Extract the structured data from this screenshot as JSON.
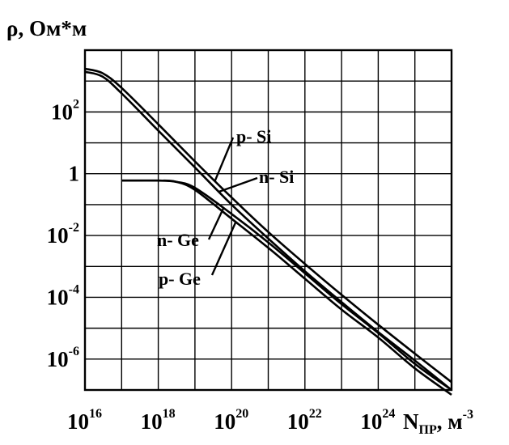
{
  "chart_data": {
    "type": "line",
    "title": "",
    "ylabel": {
      "symbol": "ρ",
      "text": ", Ом*м"
    },
    "xlabel": {
      "base": "N",
      "subscript": "ПР",
      "unit": ", м",
      "unit_exp": "-3"
    },
    "x_scale": "log",
    "y_scale": "log",
    "xlim": [
      1e+16,
      1e+26
    ],
    "ylim": [
      1e-07,
      10000.0
    ],
    "grid": true,
    "x_ticks": [
      {
        "base": "10",
        "exp": "16",
        "value": 1e+16
      },
      {
        "base": "10",
        "exp": "18",
        "value": 1e+18
      },
      {
        "base": "10",
        "exp": "20",
        "value": 1e+20
      },
      {
        "base": "10",
        "exp": "22",
        "value": 1e+22
      },
      {
        "base": "10",
        "exp": "24",
        "value": 1e+24
      }
    ],
    "y_ticks": [
      {
        "base": "10",
        "exp": "2",
        "value": 100
      },
      {
        "base": "1",
        "exp": "",
        "value": 1
      },
      {
        "base": "10",
        "exp": "-2",
        "value": 0.01
      },
      {
        "base": "10",
        "exp": "-4",
        "value": 0.0001
      },
      {
        "base": "10",
        "exp": "-6",
        "value": 1e-06
      }
    ],
    "series": [
      {
        "name": "p- Si",
        "x": [
          1e+16,
          3e+16,
          1e+17,
          1e+18,
          1e+19,
          1e+20,
          1e+21,
          1e+22,
          1e+23,
          1e+24,
          1e+25,
          1e+26
        ],
        "y": [
          2500,
          1800,
          600,
          40,
          2.5,
          0.17,
          0.013,
          0.0012,
          0.00012,
          1.3e-05,
          1.5e-06,
          1.8e-07
        ]
      },
      {
        "name": "n- Si",
        "x": [
          1e+16,
          3e+16,
          1e+17,
          1e+18,
          1e+19,
          1e+20,
          1e+21,
          1e+22,
          1e+23,
          1e+24,
          1e+25,
          1e+26
        ],
        "y": [
          2000,
          1400,
          400,
          25,
          1.6,
          0.1,
          0.008,
          0.0007,
          7e-05,
          7.5e-06,
          9e-07,
          1e-07
        ]
      },
      {
        "name": "n- Ge",
        "x": [
          1e+17,
          1e+18,
          3e+18,
          1e+19,
          1e+20,
          1e+21,
          1e+22,
          1e+23,
          1e+24,
          1e+25,
          1e+26
        ],
        "y": [
          0.6,
          0.6,
          0.55,
          0.35,
          0.05,
          0.006,
          0.0006,
          6e-05,
          7e-06,
          7e-07,
          1e-07
        ]
      },
      {
        "name": "p- Ge",
        "x": [
          1e+17,
          1e+18,
          3e+18,
          1e+19,
          1e+20,
          1e+21,
          1e+22,
          1e+23,
          1e+24,
          1e+25,
          1e+26
        ],
        "y": [
          0.6,
          0.6,
          0.55,
          0.3,
          0.035,
          0.004,
          0.0004,
          4e-05,
          5e-06,
          5e-07,
          7e-08
        ]
      }
    ]
  }
}
